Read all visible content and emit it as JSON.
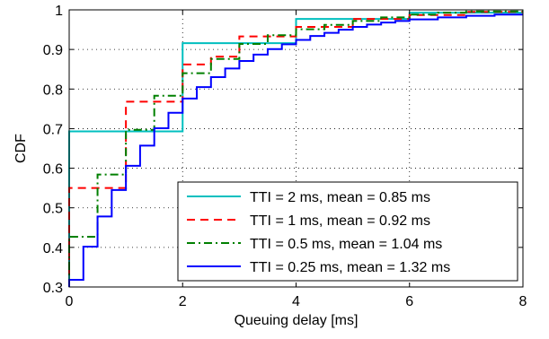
{
  "chart_data": {
    "type": "line",
    "step": true,
    "xlabel": "Queuing delay [ms]",
    "ylabel": "CDF",
    "xlim": [
      0,
      8
    ],
    "ylim": [
      0.3,
      1.0
    ],
    "x_ticks": [
      0,
      2,
      4,
      6,
      8
    ],
    "y_ticks": [
      0.3,
      0.4,
      0.5,
      0.6,
      0.7,
      0.8,
      0.9,
      1.0
    ],
    "x_tick_labels": [
      "0",
      "2",
      "4",
      "6",
      "8"
    ],
    "y_tick_labels": [
      "0.3",
      "0.4",
      "0.5",
      "0.6",
      "0.7",
      "0.8",
      "0.9",
      "1"
    ],
    "grid": true,
    "legend_position": "bottom-right",
    "series": [
      {
        "name": "TTI = 2 ms, mean = 0.85 ms",
        "color": "#00bfbf",
        "dash": "solid",
        "points": [
          [
            0,
            0.3
          ],
          [
            0,
            0.693
          ],
          [
            2,
            0.693
          ],
          [
            2,
            0.916
          ],
          [
            4,
            0.916
          ],
          [
            4,
            0.977
          ],
          [
            6,
            0.977
          ],
          [
            6,
            0.993
          ],
          [
            8,
            0.993
          ]
        ]
      },
      {
        "name": "TTI = 1 ms, mean = 0.92 ms",
        "color": "#ff0000",
        "dash": "dashed",
        "points": [
          [
            0,
            0.3
          ],
          [
            0,
            0.55
          ],
          [
            1,
            0.55
          ],
          [
            1,
            0.768
          ],
          [
            2,
            0.768
          ],
          [
            2,
            0.862
          ],
          [
            2.5,
            0.862
          ],
          [
            2.5,
            0.882
          ],
          [
            3,
            0.882
          ],
          [
            3,
            0.933
          ],
          [
            4,
            0.933
          ],
          [
            4,
            0.957
          ],
          [
            5,
            0.957
          ],
          [
            5,
            0.977
          ],
          [
            6,
            0.977
          ],
          [
            6,
            0.987
          ],
          [
            7,
            0.987
          ],
          [
            7,
            0.995
          ],
          [
            8,
            0.995
          ]
        ]
      },
      {
        "name": "TTI = 0.5 ms, mean = 1.04 ms",
        "color": "#008000",
        "dash": "dashdot",
        "points": [
          [
            0,
            0.3
          ],
          [
            0,
            0.427
          ],
          [
            0.5,
            0.427
          ],
          [
            0.5,
            0.584
          ],
          [
            1,
            0.584
          ],
          [
            1,
            0.697
          ],
          [
            1.5,
            0.697
          ],
          [
            1.5,
            0.783
          ],
          [
            2,
            0.783
          ],
          [
            2,
            0.84
          ],
          [
            2.5,
            0.84
          ],
          [
            2.5,
            0.876
          ],
          [
            3,
            0.876
          ],
          [
            3,
            0.914
          ],
          [
            3.5,
            0.914
          ],
          [
            3.5,
            0.936
          ],
          [
            4,
            0.936
          ],
          [
            4,
            0.951
          ],
          [
            4.5,
            0.951
          ],
          [
            4.5,
            0.962
          ],
          [
            5,
            0.962
          ],
          [
            5,
            0.972
          ],
          [
            5.5,
            0.972
          ],
          [
            5.5,
            0.981
          ],
          [
            6,
            0.981
          ],
          [
            6,
            0.988
          ],
          [
            6.5,
            0.988
          ],
          [
            6.5,
            0.993
          ],
          [
            7,
            0.993
          ],
          [
            7,
            0.996
          ],
          [
            8,
            0.996
          ]
        ]
      },
      {
        "name": "TTI = 0.25 ms, mean = 1.32 ms",
        "color": "#0000ff",
        "dash": "solid",
        "points": [
          [
            0,
            0.3
          ],
          [
            0,
            0.318
          ],
          [
            0.25,
            0.318
          ],
          [
            0.25,
            0.402
          ],
          [
            0.5,
            0.402
          ],
          [
            0.5,
            0.478
          ],
          [
            0.75,
            0.478
          ],
          [
            0.75,
            0.545
          ],
          [
            1,
            0.545
          ],
          [
            1,
            0.606
          ],
          [
            1.25,
            0.606
          ],
          [
            1.25,
            0.657
          ],
          [
            1.5,
            0.657
          ],
          [
            1.5,
            0.701
          ],
          [
            1.75,
            0.701
          ],
          [
            1.75,
            0.74
          ],
          [
            2,
            0.74
          ],
          [
            2,
            0.776
          ],
          [
            2.25,
            0.776
          ],
          [
            2.25,
            0.805
          ],
          [
            2.5,
            0.805
          ],
          [
            2.5,
            0.83
          ],
          [
            2.75,
            0.83
          ],
          [
            2.75,
            0.852
          ],
          [
            3,
            0.852
          ],
          [
            3,
            0.871
          ],
          [
            3.25,
            0.871
          ],
          [
            3.25,
            0.887
          ],
          [
            3.5,
            0.887
          ],
          [
            3.5,
            0.901
          ],
          [
            3.75,
            0.901
          ],
          [
            3.75,
            0.913
          ],
          [
            4,
            0.913
          ],
          [
            4,
            0.924
          ],
          [
            4.25,
            0.924
          ],
          [
            4.25,
            0.934
          ],
          [
            4.5,
            0.934
          ],
          [
            4.5,
            0.942
          ],
          [
            4.75,
            0.942
          ],
          [
            4.75,
            0.95
          ],
          [
            5,
            0.95
          ],
          [
            5,
            0.957
          ],
          [
            5.25,
            0.957
          ],
          [
            5.25,
            0.963
          ],
          [
            5.5,
            0.963
          ],
          [
            5.5,
            0.968
          ],
          [
            5.75,
            0.968
          ],
          [
            5.75,
            0.972
          ],
          [
            6,
            0.972
          ],
          [
            6,
            0.976
          ],
          [
            6.5,
            0.976
          ],
          [
            6.5,
            0.981
          ],
          [
            7,
            0.981
          ],
          [
            7,
            0.985
          ],
          [
            7.5,
            0.985
          ],
          [
            7.5,
            0.988
          ],
          [
            8,
            0.988
          ]
        ]
      }
    ]
  }
}
